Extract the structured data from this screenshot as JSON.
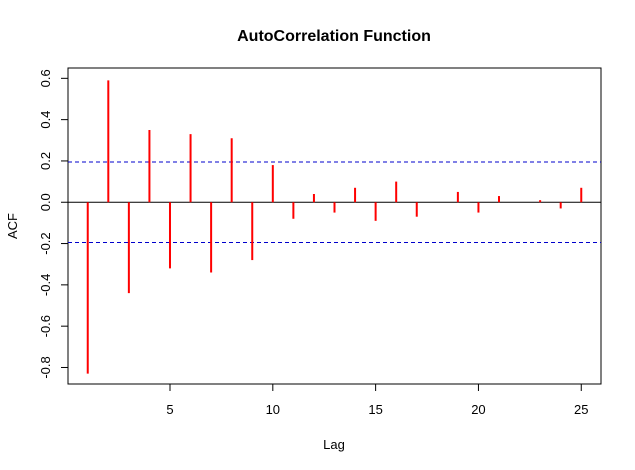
{
  "chart_data": {
    "type": "bar",
    "title": "AutoCorrelation Function",
    "xlabel": "Lag",
    "ylabel": "ACF",
    "x": [
      1,
      2,
      3,
      4,
      5,
      6,
      7,
      8,
      9,
      10,
      11,
      12,
      13,
      14,
      15,
      16,
      17,
      18,
      19,
      20,
      21,
      22,
      23,
      24,
      25
    ],
    "values": [
      -0.83,
      0.59,
      -0.44,
      0.35,
      -0.32,
      0.33,
      -0.34,
      0.31,
      -0.28,
      0.18,
      -0.08,
      0.04,
      -0.05,
      0.07,
      -0.09,
      0.1,
      -0.07,
      0.0,
      0.05,
      -0.05,
      0.03,
      0.0,
      0.01,
      -0.03,
      0.07
    ],
    "xticks": [
      5,
      10,
      15,
      20,
      25
    ],
    "yticks": [
      -0.8,
      -0.6,
      -0.4,
      -0.2,
      0.0,
      0.2,
      0.4,
      0.6
    ],
    "ytick_labels": [
      "-0.8",
      "-0.6",
      "-0.4",
      "-0.2",
      "0.0",
      "0.2",
      "0.4",
      "0.6"
    ],
    "xlim": [
      0.04,
      25.96
    ],
    "ylim": [
      -0.88,
      0.65
    ],
    "confidence_bounds": [
      0.195,
      -0.195
    ],
    "bar_color": "#FF0000",
    "bound_color": "#0000CC",
    "zero_line_color": "#000000",
    "grid": false
  }
}
